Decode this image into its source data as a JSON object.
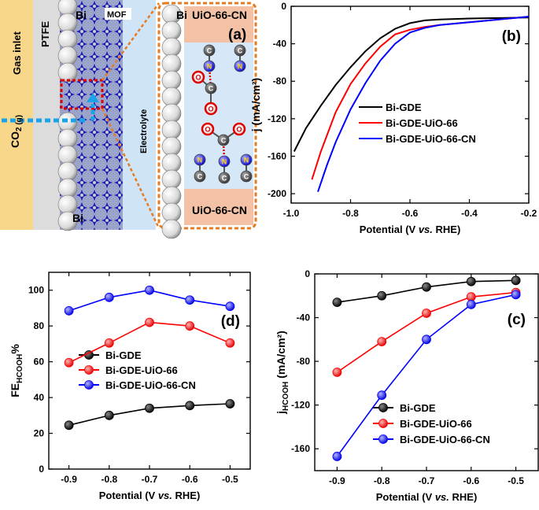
{
  "schematic": {
    "panel_label": "(a)",
    "labels": {
      "ptfe": "PTFE",
      "gas_inlet": "Gas inlet",
      "co2": "CO",
      "co2_sub": "2 (g)",
      "bi_top": "Bi",
      "bi_bottom": "Bi",
      "bi_zoom": "Bi",
      "mof": "MOF",
      "electrolyte": "Electrolyte",
      "uio_top": "UiO-66-CN",
      "uio_bottom": "UiO-66-CN",
      "atom_c": "C",
      "atom_n": "N",
      "atom_o": "O"
    },
    "colors": {
      "gas_bg": "#f8d68a",
      "electrolyte_bg": "#cfe4f7",
      "frame": "#e57c22",
      "mof": "#1f1fb5",
      "arrow": "#1aa3e8",
      "uio_pad": "#f3c2a6"
    }
  },
  "chart_data": [
    {
      "id": "b",
      "panel_label": "(b)",
      "type": "line",
      "xlabel_prefix": "Potential (V ",
      "xlabel_italic": "vs.",
      "xlabel_suffix": " RHE)",
      "ylabel": "j (mA/cm²)",
      "xlim": [
        -1.0,
        -0.2
      ],
      "ylim": [
        -210,
        0
      ],
      "xticks": [
        "-1.0",
        "-0.8",
        "-0.6",
        "-0.4",
        "-0.2"
      ],
      "yticks": [
        "0",
        "-40",
        "-80",
        "-120",
        "-160",
        "-200"
      ],
      "legend": {
        "placement": "center-right"
      },
      "series": [
        {
          "name": "Bi-GDE",
          "color": "#000000",
          "x": [
            -0.99,
            -0.95,
            -0.9,
            -0.85,
            -0.8,
            -0.75,
            -0.7,
            -0.65,
            -0.6,
            -0.55,
            -0.5,
            -0.4,
            -0.3,
            -0.2
          ],
          "y": [
            -155,
            -130,
            -106,
            -84,
            -65,
            -48,
            -34,
            -24,
            -18,
            -15,
            -14,
            -13,
            -12.5,
            -12
          ]
        },
        {
          "name": "Bi-GDE-UiO-66",
          "color": "#ff0000",
          "x": [
            -0.93,
            -0.9,
            -0.85,
            -0.8,
            -0.75,
            -0.7,
            -0.65,
            -0.6,
            -0.55,
            -0.5,
            -0.4,
            -0.3,
            -0.2
          ],
          "y": [
            -185,
            -155,
            -113,
            -83,
            -61,
            -43,
            -30,
            -25,
            -22,
            -20,
            -17,
            -14,
            -11
          ]
        },
        {
          "name": "Bi-GDE-UiO-66-CN",
          "color": "#0000ff",
          "x": [
            -0.91,
            -0.88,
            -0.85,
            -0.8,
            -0.75,
            -0.7,
            -0.65,
            -0.6,
            -0.55,
            -0.5,
            -0.4,
            -0.3,
            -0.2
          ],
          "y": [
            -198,
            -170,
            -145,
            -110,
            -82,
            -58,
            -40,
            -28,
            -23,
            -20,
            -17,
            -14,
            -11
          ]
        }
      ]
    },
    {
      "id": "d",
      "panel_label": "(d)",
      "type": "line",
      "xlabel_prefix": "Potential (V ",
      "xlabel_italic": "vs.",
      "xlabel_suffix": " RHE)",
      "ylabel": "FE",
      "ylabel_sub": "HCOOH",
      "ylabel_suffix": "%",
      "xlim": [
        -0.95,
        -0.45
      ],
      "ylim": [
        0,
        110
      ],
      "xticks": [
        "-0.9",
        "-0.8",
        "-0.7",
        "-0.6",
        "-0.5"
      ],
      "yticks": [
        "0",
        "20",
        "40",
        "60",
        "80",
        "100"
      ],
      "legend": {
        "placement": "lower-center"
      },
      "markers": true,
      "series": [
        {
          "name": "Bi-GDE",
          "color": "#000000",
          "x": [
            -0.9,
            -0.8,
            -0.7,
            -0.6,
            -0.5
          ],
          "y": [
            24.5,
            30,
            34,
            35.5,
            36.5
          ]
        },
        {
          "name": "Bi-GDE-UiO-66",
          "color": "#ff0000",
          "x": [
            -0.9,
            -0.8,
            -0.7,
            -0.6,
            -0.5
          ],
          "y": [
            59.5,
            70.5,
            82,
            80,
            70.5
          ]
        },
        {
          "name": "Bi-GDE-UiO-66-CN",
          "color": "#0000ff",
          "x": [
            -0.9,
            -0.8,
            -0.7,
            -0.6,
            -0.5
          ],
          "y": [
            88.5,
            96,
            100,
            94.5,
            91
          ]
        }
      ]
    },
    {
      "id": "c",
      "panel_label": "(c)",
      "type": "line",
      "xlabel_prefix": "Potential (V ",
      "xlabel_italic": "vs.",
      "xlabel_suffix": " RHE)",
      "ylabel": "j",
      "ylabel_sub": "HCOOH",
      "ylabel_suffix": " (mA/cm²)",
      "xlim": [
        -0.95,
        -0.45
      ],
      "ylim": [
        -180,
        0
      ],
      "xticks": [
        "-0.9",
        "-0.8",
        "-0.7",
        "-0.6",
        "-0.5"
      ],
      "yticks": [
        "0",
        "-40",
        "-80",
        "-120",
        "-160"
      ],
      "legend": {
        "placement": "lower-right"
      },
      "markers": true,
      "series": [
        {
          "name": "Bi-GDE",
          "color": "#000000",
          "x": [
            -0.9,
            -0.8,
            -0.7,
            -0.6,
            -0.5
          ],
          "y": [
            -26,
            -20,
            -12,
            -7,
            -6
          ]
        },
        {
          "name": "Bi-GDE-UiO-66",
          "color": "#ff0000",
          "x": [
            -0.9,
            -0.8,
            -0.7,
            -0.6,
            -0.5
          ],
          "y": [
            -90,
            -62,
            -36,
            -21,
            -17
          ]
        },
        {
          "name": "Bi-GDE-UiO-66-CN",
          "color": "#0000ff",
          "x": [
            -0.9,
            -0.8,
            -0.7,
            -0.6,
            -0.5
          ],
          "y": [
            -167,
            -111,
            -60,
            -28,
            -19
          ]
        }
      ]
    }
  ]
}
